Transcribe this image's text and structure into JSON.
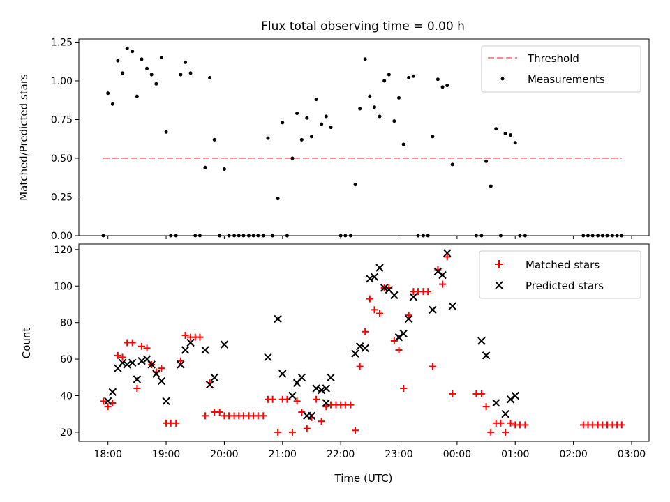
{
  "chart_data": [
    {
      "type": "scatter",
      "title": "Flux total observing time = 0.00 h",
      "xlabel": "",
      "ylabel": "Matched/Predicted stars",
      "x_unit": "hours since 18:00 UTC",
      "xlim": [
        -0.5,
        9.3
      ],
      "ylim": [
        0,
        1.27
      ],
      "yticks": [
        0.0,
        0.25,
        0.5,
        0.75,
        1.0,
        1.25
      ],
      "ytick_labels": [
        "0.00",
        "0.25",
        "0.50",
        "0.75",
        "1.00",
        "1.25"
      ],
      "xticks": [
        0,
        1,
        2,
        3,
        4,
        5,
        6,
        7,
        8,
        9
      ],
      "legend_placement": "top-right",
      "threshold": {
        "name": "Threshold",
        "value": 0.5,
        "x_range": [
          -0.08,
          8.83
        ],
        "color": "#ff7f7f"
      },
      "series": [
        {
          "name": "Measurements",
          "color": "#000000",
          "points": [
            [
              -0.08,
              0.0
            ],
            [
              0.0,
              0.92
            ],
            [
              0.08,
              0.85
            ],
            [
              0.17,
              1.13
            ],
            [
              0.25,
              1.05
            ],
            [
              0.33,
              1.21
            ],
            [
              0.42,
              1.19
            ],
            [
              0.5,
              0.9
            ],
            [
              0.58,
              1.14
            ],
            [
              0.67,
              1.08
            ],
            [
              0.75,
              1.04
            ],
            [
              0.83,
              0.98
            ],
            [
              0.92,
              1.15
            ],
            [
              1.0,
              0.67
            ],
            [
              1.08,
              0.0
            ],
            [
              1.17,
              0.0
            ],
            [
              1.25,
              1.04
            ],
            [
              1.33,
              1.12
            ],
            [
              1.42,
              1.05
            ],
            [
              1.5,
              0.0
            ],
            [
              1.58,
              0.0
            ],
            [
              1.67,
              0.44
            ],
            [
              1.75,
              1.02
            ],
            [
              1.83,
              0.62
            ],
            [
              1.92,
              0.0
            ],
            [
              2.0,
              0.43
            ],
            [
              2.08,
              0.0
            ],
            [
              2.17,
              0.0
            ],
            [
              2.25,
              0.0
            ],
            [
              2.33,
              0.0
            ],
            [
              2.42,
              0.0
            ],
            [
              2.5,
              0.0
            ],
            [
              2.58,
              0.0
            ],
            [
              2.67,
              0.0
            ],
            [
              2.75,
              0.63
            ],
            [
              2.83,
              0.0
            ],
            [
              2.92,
              0.24
            ],
            [
              3.0,
              0.73
            ],
            [
              3.08,
              0.0
            ],
            [
              3.17,
              0.5
            ],
            [
              3.25,
              0.79
            ],
            [
              3.33,
              0.62
            ],
            [
              3.42,
              0.76
            ],
            [
              3.5,
              0.64
            ],
            [
              3.58,
              0.88
            ],
            [
              3.67,
              0.72
            ],
            [
              3.75,
              0.77
            ],
            [
              3.83,
              0.7
            ],
            [
              4.0,
              0.0
            ],
            [
              4.08,
              0.0
            ],
            [
              4.17,
              0.0
            ],
            [
              4.25,
              0.33
            ],
            [
              4.33,
              0.82
            ],
            [
              4.42,
              1.14
            ],
            [
              4.5,
              0.9
            ],
            [
              4.58,
              0.83
            ],
            [
              4.67,
              0.77
            ],
            [
              4.75,
              1.0
            ],
            [
              4.83,
              1.04
            ],
            [
              4.92,
              0.74
            ],
            [
              5.0,
              0.89
            ],
            [
              5.08,
              0.59
            ],
            [
              5.17,
              1.02
            ],
            [
              5.25,
              1.03
            ],
            [
              5.33,
              0.0
            ],
            [
              5.42,
              0.0
            ],
            [
              5.5,
              0.0
            ],
            [
              5.58,
              0.64
            ],
            [
              5.67,
              1.01
            ],
            [
              5.75,
              0.96
            ],
            [
              5.83,
              0.97
            ],
            [
              5.92,
              0.46
            ],
            [
              6.33,
              0.0
            ],
            [
              6.42,
              0.0
            ],
            [
              6.5,
              0.48
            ],
            [
              6.58,
              0.32
            ],
            [
              6.67,
              0.69
            ],
            [
              6.75,
              0.0
            ],
            [
              6.83,
              0.66
            ],
            [
              6.92,
              0.65
            ],
            [
              7.0,
              0.6
            ],
            [
              7.08,
              0.0
            ],
            [
              7.17,
              0.0
            ],
            [
              8.17,
              0.0
            ],
            [
              8.25,
              0.0
            ],
            [
              8.33,
              0.0
            ],
            [
              8.42,
              0.0
            ],
            [
              8.5,
              0.0
            ],
            [
              8.58,
              0.0
            ],
            [
              8.67,
              0.0
            ],
            [
              8.75,
              0.0
            ],
            [
              8.83,
              0.0
            ]
          ]
        }
      ]
    },
    {
      "type": "scatter",
      "title": "",
      "xlabel": "Time (UTC)",
      "ylabel": "Count",
      "x_unit": "hours since 18:00 UTC",
      "xlim": [
        -0.5,
        9.3
      ],
      "ylim": [
        15,
        123
      ],
      "yticks": [
        20,
        40,
        60,
        80,
        100,
        120
      ],
      "ytick_labels": [
        "20",
        "40",
        "60",
        "80",
        "100",
        "120"
      ],
      "xticks": [
        0,
        1,
        2,
        3,
        4,
        5,
        6,
        7,
        8,
        9
      ],
      "xtick_labels": [
        "18:00",
        "19:00",
        "20:00",
        "21:00",
        "22:00",
        "23:00",
        "00:00",
        "01:00",
        "02:00",
        "03:00"
      ],
      "legend_placement": "top-right",
      "series": [
        {
          "name": "Matched stars",
          "color": "#ff0000",
          "marker": "plus",
          "points": [
            [
              -0.08,
              37
            ],
            [
              0.0,
              34
            ],
            [
              0.08,
              36
            ],
            [
              0.17,
              62
            ],
            [
              0.25,
              61
            ],
            [
              0.33,
              69
            ],
            [
              0.42,
              69
            ],
            [
              0.5,
              44
            ],
            [
              0.58,
              67
            ],
            [
              0.67,
              66
            ],
            [
              0.75,
              57
            ],
            [
              0.83,
              53
            ],
            [
              0.92,
              55
            ],
            [
              1.0,
              25
            ],
            [
              1.08,
              25
            ],
            [
              1.17,
              25
            ],
            [
              1.25,
              59
            ],
            [
              1.33,
              73
            ],
            [
              1.42,
              72
            ],
            [
              1.5,
              72
            ],
            [
              1.58,
              72
            ],
            [
              1.67,
              29
            ],
            [
              1.75,
              47
            ],
            [
              1.83,
              31
            ],
            [
              1.92,
              31
            ],
            [
              2.0,
              29
            ],
            [
              2.08,
              29
            ],
            [
              2.17,
              29
            ],
            [
              2.25,
              29
            ],
            [
              2.33,
              29
            ],
            [
              2.42,
              29
            ],
            [
              2.5,
              29
            ],
            [
              2.58,
              29
            ],
            [
              2.67,
              29
            ],
            [
              2.75,
              38
            ],
            [
              2.83,
              38
            ],
            [
              2.92,
              20
            ],
            [
              3.0,
              38
            ],
            [
              3.08,
              38
            ],
            [
              3.17,
              20
            ],
            [
              3.25,
              37
            ],
            [
              3.33,
              31
            ],
            [
              3.42,
              22
            ],
            [
              3.5,
              28
            ],
            [
              3.58,
              38
            ],
            [
              3.67,
              26
            ],
            [
              3.75,
              34
            ],
            [
              3.83,
              35
            ],
            [
              3.92,
              35
            ],
            [
              4.0,
              35
            ],
            [
              4.08,
              35
            ],
            [
              4.17,
              35
            ],
            [
              4.25,
              21
            ],
            [
              4.33,
              56
            ],
            [
              4.42,
              75
            ],
            [
              4.5,
              93
            ],
            [
              4.58,
              87
            ],
            [
              4.67,
              85
            ],
            [
              4.75,
              99
            ],
            [
              4.83,
              99
            ],
            [
              4.92,
              70
            ],
            [
              5.0,
              65
            ],
            [
              5.08,
              44
            ],
            [
              5.17,
              84
            ],
            [
              5.25,
              97
            ],
            [
              5.33,
              97
            ],
            [
              5.42,
              97
            ],
            [
              5.5,
              97
            ],
            [
              5.58,
              56
            ],
            [
              5.67,
              109
            ],
            [
              5.75,
              101
            ],
            [
              5.83,
              116
            ],
            [
              5.92,
              41
            ],
            [
              6.33,
              41
            ],
            [
              6.42,
              41
            ],
            [
              6.5,
              34
            ],
            [
              6.58,
              20
            ],
            [
              6.67,
              25
            ],
            [
              6.75,
              25
            ],
            [
              6.83,
              20
            ],
            [
              6.92,
              25
            ],
            [
              7.0,
              24
            ],
            [
              7.08,
              24
            ],
            [
              7.17,
              24
            ],
            [
              8.17,
              24
            ],
            [
              8.25,
              24
            ],
            [
              8.33,
              24
            ],
            [
              8.42,
              24
            ],
            [
              8.5,
              24
            ],
            [
              8.58,
              24
            ],
            [
              8.67,
              24
            ],
            [
              8.75,
              24
            ],
            [
              8.83,
              24
            ]
          ]
        },
        {
          "name": "Predicted stars",
          "color": "#000000",
          "marker": "x",
          "points": [
            [
              0.0,
              37
            ],
            [
              0.08,
              42
            ],
            [
              0.17,
              55
            ],
            [
              0.25,
              58
            ],
            [
              0.33,
              57
            ],
            [
              0.42,
              58
            ],
            [
              0.5,
              49
            ],
            [
              0.58,
              59
            ],
            [
              0.67,
              60
            ],
            [
              0.75,
              57
            ],
            [
              0.83,
              52
            ],
            [
              0.92,
              48
            ],
            [
              1.0,
              37
            ],
            [
              1.25,
              57
            ],
            [
              1.33,
              65
            ],
            [
              1.42,
              69
            ],
            [
              1.67,
              65
            ],
            [
              1.75,
              46
            ],
            [
              1.83,
              50
            ],
            [
              2.0,
              68
            ],
            [
              2.75,
              61
            ],
            [
              2.92,
              82
            ],
            [
              3.0,
              52
            ],
            [
              3.17,
              40
            ],
            [
              3.25,
              47
            ],
            [
              3.33,
              50
            ],
            [
              3.42,
              29
            ],
            [
              3.5,
              29
            ],
            [
              3.58,
              44
            ],
            [
              3.67,
              43
            ],
            [
              3.75,
              36
            ],
            [
              3.75,
              44
            ],
            [
              3.83,
              50
            ],
            [
              4.25,
              63
            ],
            [
              4.33,
              67
            ],
            [
              4.42,
              66
            ],
            [
              4.5,
              104
            ],
            [
              4.58,
              105
            ],
            [
              4.67,
              110
            ],
            [
              4.75,
              99
            ],
            [
              4.83,
              98
            ],
            [
              4.92,
              95
            ],
            [
              5.0,
              72
            ],
            [
              5.08,
              74
            ],
            [
              5.17,
              82
            ],
            [
              5.25,
              94
            ],
            [
              5.58,
              87
            ],
            [
              5.67,
              108
            ],
            [
              5.75,
              106
            ],
            [
              5.83,
              118
            ],
            [
              5.92,
              89
            ],
            [
              6.42,
              70
            ],
            [
              6.5,
              62
            ],
            [
              6.67,
              36
            ],
            [
              6.83,
              30
            ],
            [
              6.92,
              38
            ],
            [
              7.0,
              40
            ]
          ]
        }
      ]
    }
  ]
}
